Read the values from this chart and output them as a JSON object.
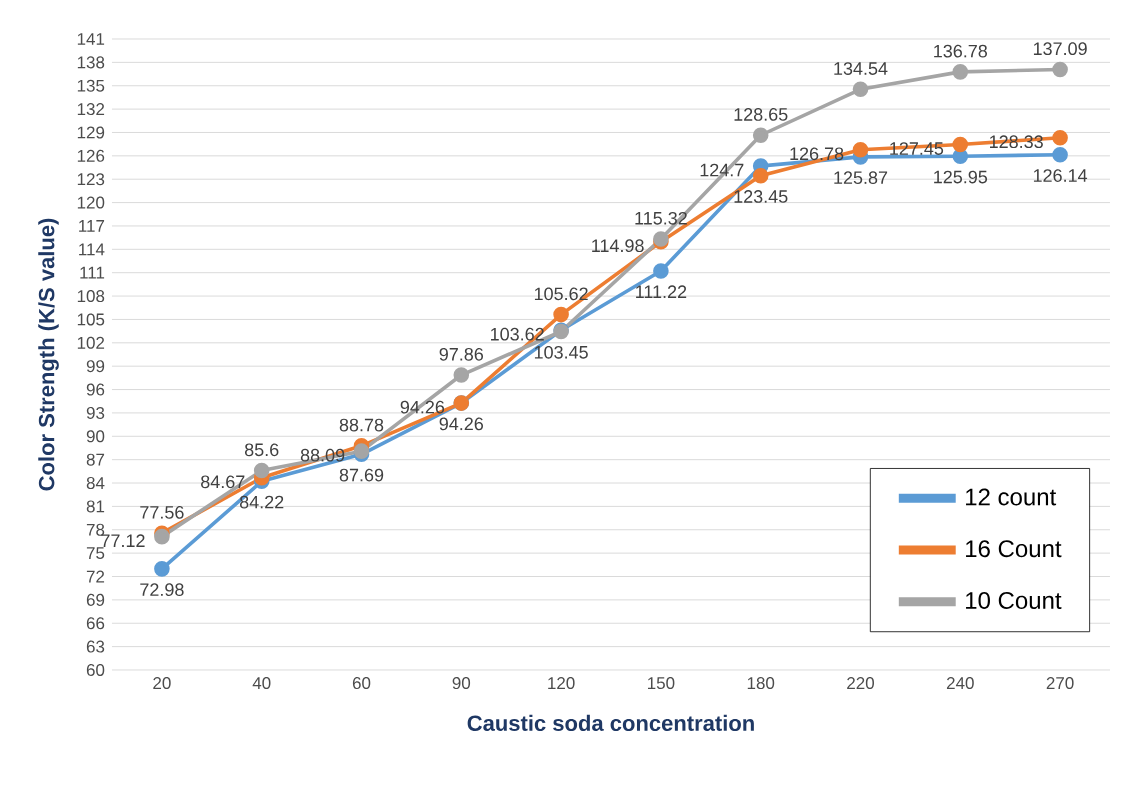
{
  "chart_data": {
    "type": "line",
    "xlabel": "Caustic soda concentration",
    "ylabel": "Color Strength (K/S value)",
    "categories": [
      "20",
      "40",
      "60",
      "90",
      "120",
      "150",
      "180",
      "220",
      "240",
      "270"
    ],
    "series": [
      {
        "name": "12 count",
        "color": "#5b9bd5",
        "values": [
          72.98,
          84.22,
          87.69,
          94.26,
          103.62,
          111.22,
          124.7,
          125.87,
          125.95,
          126.14
        ]
      },
      {
        "name": "16 Count",
        "color": "#ed7d31",
        "values": [
          77.56,
          84.67,
          88.78,
          94.26,
          105.62,
          114.98,
          123.45,
          126.78,
          127.45,
          128.33
        ]
      },
      {
        "name": "10 Count",
        "color": "#a5a5a5",
        "values": [
          77.12,
          85.6,
          88.09,
          97.86,
          103.45,
          115.32,
          128.65,
          134.54,
          136.78,
          137.09
        ]
      }
    ],
    "ylim": [
      60,
      141
    ],
    "yticks": [
      60,
      63,
      66,
      69,
      72,
      75,
      78,
      81,
      84,
      87,
      90,
      93,
      96,
      99,
      102,
      105,
      108,
      111,
      114,
      117,
      120,
      123,
      126,
      129,
      132,
      135,
      138,
      141
    ],
    "grid": "y",
    "legend": "bottom right",
    "marker": "circle",
    "data_labels": true
  }
}
